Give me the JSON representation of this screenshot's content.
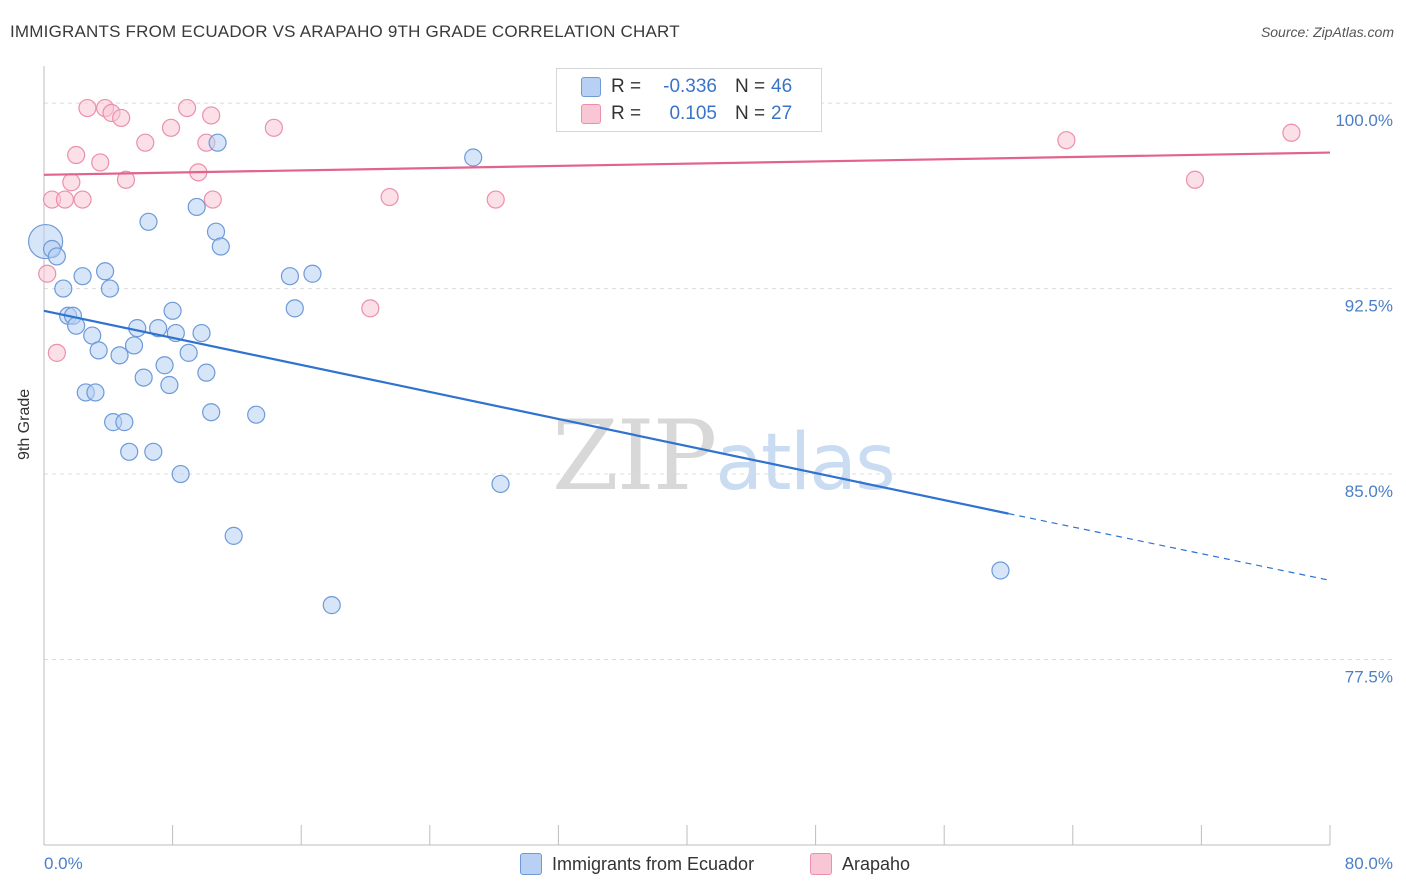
{
  "header": {
    "title": "IMMIGRANTS FROM ECUADOR VS ARAPAHO 9TH GRADE CORRELATION CHART",
    "source": "Source: ZipAtlas.com"
  },
  "legend": {
    "r_label": "R =",
    "n_label": "N =",
    "series1": {
      "r": "-0.336",
      "n": "46"
    },
    "series2": {
      "r": "0.105",
      "n": "27"
    }
  },
  "watermark": {
    "zip": "ZIP",
    "atlas": "atlas"
  },
  "chart_data": {
    "type": "scatter",
    "title": "IMMIGRANTS FROM ECUADOR VS ARAPAHO 9TH GRADE CORRELATION CHART",
    "xlabel": "",
    "ylabel": "9th Grade",
    "xlim": [
      0,
      80
    ],
    "ylim": [
      70.0,
      101.5
    ],
    "x_tick_labels": [
      "0.0%",
      "80.0%"
    ],
    "y_ticks": [
      {
        "value": 100.0,
        "label": "100.0%"
      },
      {
        "value": 92.5,
        "label": "92.5%"
      },
      {
        "value": 85.0,
        "label": "85.0%"
      },
      {
        "value": 77.5,
        "label": "77.5%"
      }
    ],
    "colors": {
      "series1": "#6e9ad8",
      "series1_fill": "#b7d0f3",
      "series1_line": "#2f72d0",
      "series2": "#ec8fac",
      "series2_fill": "#f8c6d5",
      "series2_line": "#e0648c",
      "axis_label": "#4a7fc6"
    },
    "series": [
      {
        "name": "Immigrants from Ecuador",
        "r": -0.336,
        "n": 46,
        "trend": {
          "x0": 0,
          "y0": 91.6,
          "x1": 60,
          "y1": 83.4,
          "dash_to_x": 80,
          "dash_to_y": 80.7
        },
        "points": [
          {
            "x": 0.1,
            "y": 94.4,
            "big": true
          },
          {
            "x": 0.5,
            "y": 94.1
          },
          {
            "x": 0.8,
            "y": 93.8
          },
          {
            "x": 1.2,
            "y": 92.5
          },
          {
            "x": 1.5,
            "y": 91.4
          },
          {
            "x": 1.8,
            "y": 91.4
          },
          {
            "x": 2.0,
            "y": 91.0
          },
          {
            "x": 2.4,
            "y": 93.0
          },
          {
            "x": 2.6,
            "y": 88.3
          },
          {
            "x": 3.0,
            "y": 90.6
          },
          {
            "x": 3.2,
            "y": 88.3
          },
          {
            "x": 3.4,
            "y": 90.0
          },
          {
            "x": 3.8,
            "y": 93.2
          },
          {
            "x": 4.1,
            "y": 92.5
          },
          {
            "x": 4.3,
            "y": 87.1
          },
          {
            "x": 4.7,
            "y": 89.8
          },
          {
            "x": 5.0,
            "y": 87.1
          },
          {
            "x": 5.3,
            "y": 85.9
          },
          {
            "x": 5.6,
            "y": 90.2
          },
          {
            "x": 5.8,
            "y": 90.9
          },
          {
            "x": 6.2,
            "y": 88.9
          },
          {
            "x": 6.5,
            "y": 95.2
          },
          {
            "x": 6.8,
            "y": 85.9
          },
          {
            "x": 7.1,
            "y": 90.9
          },
          {
            "x": 7.5,
            "y": 89.4
          },
          {
            "x": 7.8,
            "y": 88.6
          },
          {
            "x": 8.0,
            "y": 91.6
          },
          {
            "x": 8.2,
            "y": 90.7
          },
          {
            "x": 8.5,
            "y": 85.0
          },
          {
            "x": 9.0,
            "y": 89.9
          },
          {
            "x": 9.5,
            "y": 95.8
          },
          {
            "x": 9.8,
            "y": 90.7
          },
          {
            "x": 10.1,
            "y": 89.1
          },
          {
            "x": 10.4,
            "y": 87.5
          },
          {
            "x": 10.7,
            "y": 94.8
          },
          {
            "x": 10.8,
            "y": 98.4
          },
          {
            "x": 11.0,
            "y": 94.2
          },
          {
            "x": 11.8,
            "y": 82.5
          },
          {
            "x": 13.2,
            "y": 87.4
          },
          {
            "x": 15.3,
            "y": 93.0
          },
          {
            "x": 15.6,
            "y": 91.7
          },
          {
            "x": 16.7,
            "y": 93.1
          },
          {
            "x": 17.9,
            "y": 79.7
          },
          {
            "x": 26.7,
            "y": 97.8
          },
          {
            "x": 28.4,
            "y": 84.6
          },
          {
            "x": 59.5,
            "y": 81.1
          }
        ]
      },
      {
        "name": "Arapaho",
        "r": 0.105,
        "n": 27,
        "trend": {
          "x0": 0,
          "y0": 97.1,
          "x1": 80,
          "y1": 98.0
        },
        "points": [
          {
            "x": 0.2,
            "y": 93.1
          },
          {
            "x": 0.5,
            "y": 96.1
          },
          {
            "x": 0.8,
            "y": 89.9
          },
          {
            "x": 1.3,
            "y": 96.1
          },
          {
            "x": 1.7,
            "y": 96.8
          },
          {
            "x": 2.0,
            "y": 97.9
          },
          {
            "x": 2.4,
            "y": 96.1
          },
          {
            "x": 2.7,
            "y": 99.8
          },
          {
            "x": 3.5,
            "y": 97.6
          },
          {
            "x": 3.8,
            "y": 99.8
          },
          {
            "x": 4.2,
            "y": 99.6
          },
          {
            "x": 4.8,
            "y": 99.4
          },
          {
            "x": 5.1,
            "y": 96.9
          },
          {
            "x": 6.3,
            "y": 98.4
          },
          {
            "x": 7.9,
            "y": 99.0
          },
          {
            "x": 8.9,
            "y": 99.8
          },
          {
            "x": 9.6,
            "y": 97.2
          },
          {
            "x": 10.1,
            "y": 98.4
          },
          {
            "x": 10.4,
            "y": 99.5
          },
          {
            "x": 10.5,
            "y": 96.1
          },
          {
            "x": 14.3,
            "y": 99.0
          },
          {
            "x": 20.3,
            "y": 91.7
          },
          {
            "x": 21.5,
            "y": 96.2
          },
          {
            "x": 28.1,
            "y": 96.1
          },
          {
            "x": 63.6,
            "y": 98.5
          },
          {
            "x": 71.6,
            "y": 96.9
          },
          {
            "x": 77.6,
            "y": 98.8
          }
        ]
      }
    ]
  }
}
